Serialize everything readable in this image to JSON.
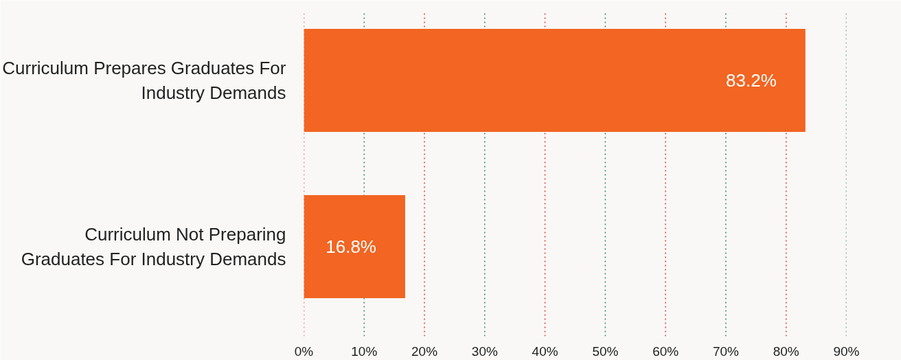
{
  "chart_data": {
    "type": "bar",
    "orientation": "horizontal",
    "categories": [
      "Curriculum Prepares Graduates For Industry Demands",
      "Curriculum Not Preparing Graduates For Industry Demands"
    ],
    "values": [
      83.2,
      16.8
    ],
    "color": "#f26522",
    "value_labels": [
      "83.2%",
      "16.8%"
    ],
    "xlim": [
      0,
      90
    ],
    "xticks": [
      {
        "value": 0,
        "label": "0%"
      },
      {
        "value": 10,
        "label": "10%"
      },
      {
        "value": 20,
        "label": "20%"
      },
      {
        "value": 30,
        "label": "30%"
      },
      {
        "value": 40,
        "label": "40%"
      },
      {
        "value": 50,
        "label": "50%"
      },
      {
        "value": 60,
        "label": "60%"
      },
      {
        "value": 70,
        "label": "70%"
      },
      {
        "value": 80,
        "label": "80%"
      },
      {
        "value": 90,
        "label": "90%"
      }
    ],
    "grid": "x"
  }
}
